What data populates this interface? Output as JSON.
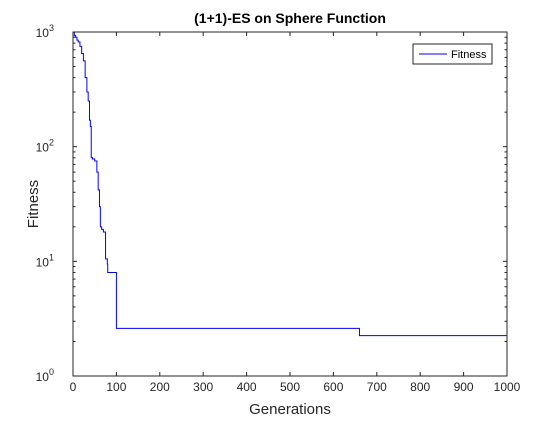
{
  "chart_data": {
    "type": "line",
    "title": "(1+1)-ES on Sphere Function",
    "xlabel": "Generations",
    "ylabel": "Fitness",
    "xlim": [
      0,
      1000
    ],
    "ylim": [
      1,
      1000
    ],
    "yscale": "log",
    "grid": false,
    "legend_position": "top-right",
    "x_ticks": [
      {
        "value": 0,
        "label": "0"
      },
      {
        "value": 100,
        "label": "100"
      },
      {
        "value": 200,
        "label": "200"
      },
      {
        "value": 300,
        "label": "300"
      },
      {
        "value": 400,
        "label": "400"
      },
      {
        "value": 500,
        "label": "500"
      },
      {
        "value": 600,
        "label": "600"
      },
      {
        "value": 700,
        "label": "700"
      },
      {
        "value": 800,
        "label": "800"
      },
      {
        "value": 900,
        "label": "900"
      },
      {
        "value": 1000,
        "label": "1000"
      }
    ],
    "y_ticks": [
      {
        "value": 1,
        "base": "10",
        "exp": "0"
      },
      {
        "value": 10,
        "base": "10",
        "exp": "1"
      },
      {
        "value": 100,
        "base": "10",
        "exp": "2"
      },
      {
        "value": 1000,
        "base": "10",
        "exp": "3"
      }
    ],
    "series": [
      {
        "name": "Fitness",
        "color": "#0000ff",
        "step": true,
        "x": [
          0,
          3,
          6,
          9,
          12,
          16,
          20,
          24,
          28,
          32,
          35,
          38,
          40,
          42,
          45,
          50,
          55,
          58,
          61,
          63,
          66,
          70,
          75,
          79,
          80,
          100,
          657,
          660,
          1000
        ],
        "y": [
          1000,
          930,
          900,
          850,
          820,
          750,
          650,
          560,
          400,
          300,
          250,
          170,
          150,
          80,
          78,
          75,
          60,
          42,
          30,
          20,
          19,
          18,
          10.5,
          9.5,
          8,
          2.6,
          2.6,
          2.25,
          2.25
        ]
      }
    ]
  }
}
